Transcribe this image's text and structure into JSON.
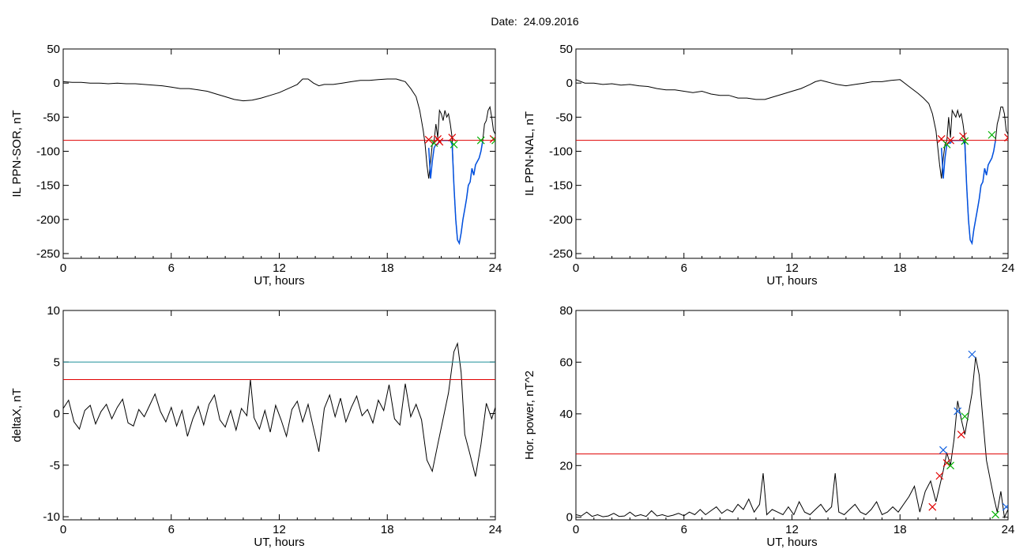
{
  "header": {
    "date_label": "Date:  24.09.2016"
  },
  "colors": {
    "threshold": "#e00000",
    "upper_threshold": "#20909a",
    "ppn": "#0050e0",
    "marker_red": "#e00000",
    "marker_green": "#00b000",
    "marker_blue": "#1060e0"
  },
  "chart_data": [
    {
      "type": "line",
      "xlabel": "UT, hours",
      "ylabel": "IL PPN-SOR, nT",
      "xlim": [
        0,
        24
      ],
      "ylim": [
        -257,
        50
      ],
      "xticks": [
        0,
        6,
        12,
        18,
        24
      ],
      "yticks": [
        50,
        0,
        -50,
        -100,
        -150,
        -200,
        -250
      ],
      "series": [
        {
          "role": "signal",
          "x": [
            0,
            0.5,
            1,
            1.5,
            2,
            2.5,
            3,
            3.5,
            4,
            4.5,
            5,
            5.5,
            6,
            6.5,
            7,
            7.5,
            8,
            8.5,
            9,
            9.5,
            10,
            10.5,
            11,
            11.5,
            12,
            12.5,
            13,
            13.3,
            13.6,
            13.9,
            14.2,
            14.5,
            15,
            15.5,
            16,
            16.5,
            17,
            17.5,
            18,
            18.5,
            19,
            19.3,
            19.6,
            19.8,
            20,
            20.1,
            20.2,
            20.3,
            20.4,
            20.5,
            20.6,
            20.7,
            20.8,
            20.9,
            21,
            21.1,
            21.2,
            21.3,
            21.4,
            21.5,
            21.6,
            21.7,
            21.8,
            21.9,
            22,
            22.1,
            22.2,
            22.3,
            22.4,
            22.5,
            22.6,
            22.7,
            22.8,
            22.9,
            23,
            23.1,
            23.2,
            23.3,
            23.4,
            23.5,
            23.6,
            23.7,
            23.8,
            23.9,
            24
          ],
          "y": [
            2,
            1,
            1,
            0,
            0,
            -1,
            0,
            -1,
            -1,
            -2,
            -3,
            -4,
            -6,
            -8,
            -8,
            -10,
            -12,
            -16,
            -20,
            -24,
            -26,
            -25,
            -22,
            -18,
            -14,
            -8,
            -2,
            6,
            6,
            0,
            -4,
            -2,
            -2,
            0,
            2,
            4,
            4,
            5,
            6,
            6,
            2,
            -8,
            -20,
            -40,
            -70,
            -90,
            -120,
            -140,
            -115,
            -90,
            -85,
            -60,
            -80,
            -40,
            -45,
            -55,
            -40,
            -50,
            -45,
            -60,
            -80,
            -150,
            -200,
            -230,
            -235,
            -220,
            -200,
            -185,
            -170,
            -150,
            -145,
            -125,
            -135,
            -120,
            -115,
            -110,
            -100,
            -85,
            -60,
            -55,
            -40,
            -35,
            -50,
            -70,
            -75
          ]
        },
        {
          "role": "ppn",
          "x": [
            20.3,
            20.4,
            20.5,
            20.6,
            20.7,
            20.8,
            20.9,
            21,
            21.5,
            21.6,
            21.7,
            21.8,
            21.9,
            22,
            22.1,
            22.2,
            22.3,
            22.4,
            22.5,
            22.6,
            22.7,
            22.8,
            22.9,
            23,
            23.1,
            23.2,
            23.3
          ],
          "y": [
            -95,
            -140,
            -115,
            -95,
            -90,
            -90,
            -84,
            -84,
            -84,
            -90,
            -150,
            -200,
            -230,
            -235,
            -220,
            -200,
            -185,
            -170,
            -150,
            -145,
            -125,
            -135,
            -120,
            -115,
            -110,
            -100,
            -85
          ]
        }
      ],
      "threshold": -84,
      "markers": [
        {
          "x": 20.3,
          "y": -83,
          "color": "red"
        },
        {
          "x": 20.6,
          "y": -88,
          "color": "green"
        },
        {
          "x": 20.8,
          "y": -82,
          "color": "red"
        },
        {
          "x": 20.9,
          "y": -86,
          "color": "red"
        },
        {
          "x": 21.6,
          "y": -80,
          "color": "red"
        },
        {
          "x": 21.7,
          "y": -90,
          "color": "green"
        },
        {
          "x": 23.2,
          "y": -84,
          "color": "green"
        },
        {
          "x": 23.9,
          "y": -82,
          "color": "red"
        },
        {
          "x": 24.0,
          "y": -84,
          "color": "green"
        }
      ]
    },
    {
      "type": "line",
      "xlabel": "UT, hours",
      "ylabel": "IL PPN-NAL, nT",
      "xlim": [
        0,
        24
      ],
      "ylim": [
        -257,
        50
      ],
      "xticks": [
        0,
        6,
        12,
        18,
        24
      ],
      "yticks": [
        50,
        0,
        -50,
        -100,
        -150,
        -200,
        -250
      ],
      "series": [
        {
          "role": "signal",
          "x": [
            0,
            0.5,
            1,
            1.5,
            2,
            2.5,
            3,
            3.5,
            4,
            4.5,
            5,
            5.5,
            6,
            6.5,
            7,
            7.5,
            8,
            8.5,
            9,
            9.5,
            10,
            10.5,
            11,
            11.5,
            12,
            12.5,
            13,
            13.3,
            13.6,
            13.9,
            14.2,
            14.5,
            15,
            15.5,
            16,
            16.5,
            17,
            17.5,
            18,
            18.5,
            19,
            19.3,
            19.6,
            19.8,
            20,
            20.1,
            20.2,
            20.3,
            20.4,
            20.5,
            20.6,
            20.7,
            20.8,
            20.9,
            21,
            21.1,
            21.2,
            21.3,
            21.4,
            21.5,
            21.6,
            21.7,
            21.8,
            21.9,
            22,
            22.1,
            22.2,
            22.3,
            22.4,
            22.5,
            22.6,
            22.7,
            22.8,
            22.9,
            23,
            23.1,
            23.2,
            23.3,
            23.4,
            23.5,
            23.6,
            23.7,
            23.8,
            23.9,
            24
          ],
          "y": [
            5,
            0,
            0,
            -2,
            -1,
            -3,
            -2,
            -4,
            -5,
            -8,
            -10,
            -10,
            -12,
            -14,
            -12,
            -16,
            -18,
            -18,
            -22,
            -22,
            -24,
            -24,
            -20,
            -16,
            -12,
            -8,
            -2,
            2,
            4,
            2,
            0,
            -2,
            -4,
            -2,
            0,
            2,
            2,
            4,
            5,
            -5,
            -15,
            -22,
            -30,
            -45,
            -70,
            -95,
            -120,
            -140,
            -110,
            -90,
            -85,
            -50,
            -80,
            -40,
            -45,
            -50,
            -40,
            -50,
            -45,
            -60,
            -80,
            -150,
            -200,
            -230,
            -235,
            -215,
            -200,
            -185,
            -170,
            -150,
            -145,
            -125,
            -135,
            -120,
            -115,
            -110,
            -100,
            -85,
            -60,
            -50,
            -35,
            -35,
            -45,
            -70,
            -75
          ]
        },
        {
          "role": "ppn",
          "x": [
            20.3,
            20.4,
            20.5,
            20.6,
            20.7,
            20.8,
            20.9,
            21,
            21.5,
            21.6,
            21.7,
            21.8,
            21.9,
            22,
            22.1,
            22.2,
            22.3,
            22.4,
            22.5,
            22.6,
            22.7,
            22.8,
            22.9,
            23,
            23.1,
            23.2,
            23.3
          ],
          "y": [
            -95,
            -140,
            -110,
            -90,
            -88,
            -88,
            -84,
            -84,
            -84,
            -90,
            -150,
            -200,
            -230,
            -235,
            -215,
            -200,
            -185,
            -170,
            -150,
            -145,
            -125,
            -135,
            -120,
            -115,
            -110,
            -100,
            -85
          ]
        }
      ],
      "threshold": -84,
      "markers": [
        {
          "x": 20.3,
          "y": -82,
          "color": "red"
        },
        {
          "x": 20.6,
          "y": -90,
          "color": "green"
        },
        {
          "x": 20.8,
          "y": -84,
          "color": "red"
        },
        {
          "x": 21.5,
          "y": -78,
          "color": "red"
        },
        {
          "x": 21.6,
          "y": -85,
          "color": "green"
        },
        {
          "x": 23.1,
          "y": -76,
          "color": "green"
        },
        {
          "x": 24.0,
          "y": -80,
          "color": "red"
        }
      ]
    },
    {
      "type": "line",
      "xlabel": "UT, hours",
      "ylabel": "deltaX, nT",
      "xlim": [
        0,
        24
      ],
      "ylim": [
        -10.3,
        10
      ],
      "xticks": [
        0,
        6,
        12,
        18,
        24
      ],
      "yticks": [
        10,
        5,
        0,
        -5,
        -10
      ],
      "series": [
        {
          "role": "signal",
          "x": [
            0,
            0.3,
            0.6,
            0.9,
            1.2,
            1.5,
            1.8,
            2.1,
            2.4,
            2.7,
            3,
            3.3,
            3.6,
            3.9,
            4.2,
            4.5,
            4.8,
            5.1,
            5.4,
            5.7,
            6,
            6.3,
            6.6,
            6.9,
            7.2,
            7.5,
            7.8,
            8.1,
            8.4,
            8.7,
            9,
            9.3,
            9.6,
            9.9,
            10.2,
            10.4,
            10.6,
            10.9,
            11.2,
            11.5,
            11.8,
            12.1,
            12.4,
            12.7,
            13,
            13.3,
            13.6,
            13.9,
            14.2,
            14.5,
            14.8,
            15.1,
            15.4,
            15.7,
            16,
            16.3,
            16.6,
            16.9,
            17.2,
            17.5,
            17.8,
            18.1,
            18.4,
            18.7,
            19,
            19.3,
            19.6,
            19.9,
            20.2,
            20.5,
            20.8,
            21.1,
            21.4,
            21.7,
            21.9,
            22.1,
            22.3,
            22.6,
            22.9,
            23.2,
            23.5,
            23.8,
            24
          ],
          "y": [
            0.5,
            1.3,
            -0.8,
            -1.5,
            0.3,
            0.8,
            -1,
            0.2,
            0.9,
            -0.5,
            0.6,
            1.4,
            -0.9,
            -1.2,
            0.4,
            -0.3,
            0.8,
            1.9,
            0.2,
            -0.8,
            0.6,
            -1.2,
            0.3,
            -2.2,
            -0.5,
            0.7,
            -1.1,
            0.9,
            1.8,
            -0.6,
            -1.3,
            0.3,
            -1.6,
            0.5,
            -0.2,
            3.3,
            -0.4,
            -1.5,
            0.3,
            -1.8,
            0.8,
            -0.6,
            -2.2,
            0.4,
            1.2,
            -0.8,
            0.9,
            -1.4,
            -3.7,
            0.5,
            1.8,
            -0.3,
            1.5,
            -0.8,
            0.6,
            1.7,
            -0.2,
            0.4,
            -0.9,
            1.3,
            0.3,
            2.8,
            -0.5,
            -1.1,
            2.9,
            -0.3,
            0.9,
            -0.6,
            -4.5,
            -5.6,
            -3,
            -0.5,
            2,
            6,
            6.8,
            4,
            -2,
            -4,
            -6.1,
            -3,
            1,
            -0.5,
            0.6
          ]
        }
      ],
      "threshold": 3.3,
      "upper_threshold": 5
    },
    {
      "type": "line",
      "xlabel": "UT, hours",
      "ylabel": "Hor. power, nT^2",
      "xlim": [
        0,
        24
      ],
      "ylim": [
        -1,
        80
      ],
      "xticks": [
        0,
        6,
        12,
        18,
        24
      ],
      "yticks": [
        80,
        60,
        40,
        20,
        0
      ],
      "series": [
        {
          "role": "signal",
          "x": [
            0,
            0.3,
            0.6,
            0.9,
            1.2,
            1.5,
            1.8,
            2.1,
            2.4,
            2.7,
            3,
            3.3,
            3.6,
            3.9,
            4.2,
            4.5,
            4.8,
            5.1,
            5.4,
            5.7,
            6,
            6.3,
            6.6,
            6.9,
            7.2,
            7.5,
            7.8,
            8.1,
            8.4,
            8.7,
            9,
            9.3,
            9.6,
            9.9,
            10.2,
            10.4,
            10.6,
            10.9,
            11.2,
            11.5,
            11.8,
            12.1,
            12.4,
            12.7,
            13,
            13.3,
            13.6,
            13.9,
            14.2,
            14.4,
            14.6,
            14.9,
            15.2,
            15.5,
            15.8,
            16.1,
            16.4,
            16.7,
            17,
            17.3,
            17.6,
            17.9,
            18.2,
            18.5,
            18.8,
            19.1,
            19.4,
            19.7,
            20,
            20.2,
            20.4,
            20.6,
            20.8,
            21,
            21.2,
            21.4,
            21.6,
            21.8,
            22,
            22.2,
            22.4,
            22.6,
            22.8,
            23,
            23.2,
            23.4,
            23.6,
            23.8,
            24
          ],
          "y": [
            1,
            0.5,
            2,
            0.3,
            1,
            0.2,
            0.5,
            1.5,
            0.3,
            0.5,
            2,
            0.4,
            1,
            0.3,
            2.5,
            0.5,
            1,
            0.3,
            0.8,
            1.5,
            0.6,
            2,
            1,
            3,
            1,
            2.5,
            4,
            1.5,
            3,
            2,
            5,
            3,
            7,
            2,
            5,
            17,
            1,
            3,
            2,
            1,
            4,
            1,
            6,
            2,
            1,
            3,
            5,
            2,
            4,
            17,
            2,
            1,
            3,
            5,
            2,
            1,
            3,
            6,
            1,
            2,
            4,
            2,
            5,
            8,
            12,
            2,
            10,
            14,
            6,
            12,
            18,
            25,
            20,
            30,
            45,
            38,
            32,
            40,
            48,
            62,
            55,
            38,
            22,
            15,
            8,
            2,
            10,
            0,
            3
          ]
        }
      ],
      "threshold": 24.5,
      "markers": [
        {
          "x": 20.2,
          "y": 16,
          "color": "red"
        },
        {
          "x": 20.4,
          "y": 26,
          "color": "blue"
        },
        {
          "x": 20.6,
          "y": 21,
          "color": "red"
        },
        {
          "x": 20.8,
          "y": 20,
          "color": "green"
        },
        {
          "x": 21.4,
          "y": 32,
          "color": "red"
        },
        {
          "x": 21.6,
          "y": 39,
          "color": "green"
        },
        {
          "x": 21.2,
          "y": 41,
          "color": "blue"
        },
        {
          "x": 22.0,
          "y": 63,
          "color": "blue"
        },
        {
          "x": 23.3,
          "y": 1,
          "color": "green"
        },
        {
          "x": 23.9,
          "y": 4,
          "color": "blue"
        },
        {
          "x": 19.8,
          "y": 4,
          "color": "red"
        }
      ]
    }
  ]
}
